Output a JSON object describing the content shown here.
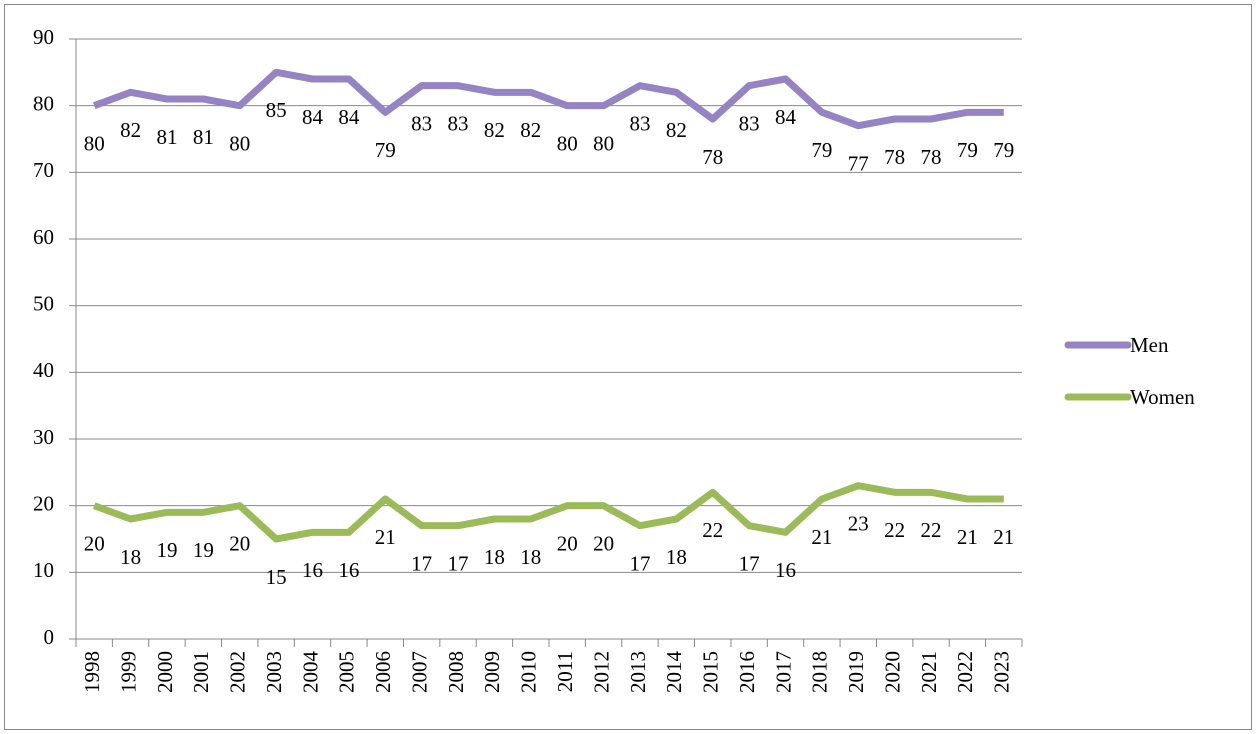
{
  "chart_data": {
    "type": "line",
    "categories": [
      "1998",
      "1999",
      "2000",
      "2001",
      "2002",
      "2003",
      "2004",
      "2005",
      "2006",
      "2007",
      "2008",
      "2009",
      "2010",
      "2011",
      "2012",
      "2013",
      "2014",
      "2015",
      "2016",
      "2017",
      "2018",
      "2019",
      "2020",
      "2021",
      "2022",
      "2023"
    ],
    "series": [
      {
        "name": "Men",
        "color": "#9583c3",
        "values": [
          80,
          82,
          81,
          81,
          80,
          85,
          84,
          84,
          79,
          83,
          83,
          82,
          82,
          80,
          80,
          83,
          82,
          78,
          83,
          84,
          79,
          77,
          78,
          78,
          79,
          79
        ]
      },
      {
        "name": "Women",
        "color": "#9bbb59",
        "values": [
          20,
          18,
          19,
          19,
          20,
          15,
          16,
          16,
          21,
          17,
          17,
          18,
          18,
          20,
          20,
          17,
          18,
          22,
          17,
          16,
          21,
          23,
          22,
          22,
          21,
          21
        ]
      }
    ],
    "ylim": [
      0,
      90
    ],
    "yticks": [
      0,
      10,
      20,
      30,
      40,
      50,
      60,
      70,
      80,
      90
    ],
    "grid": true,
    "legend": "right",
    "data_labels": true
  }
}
